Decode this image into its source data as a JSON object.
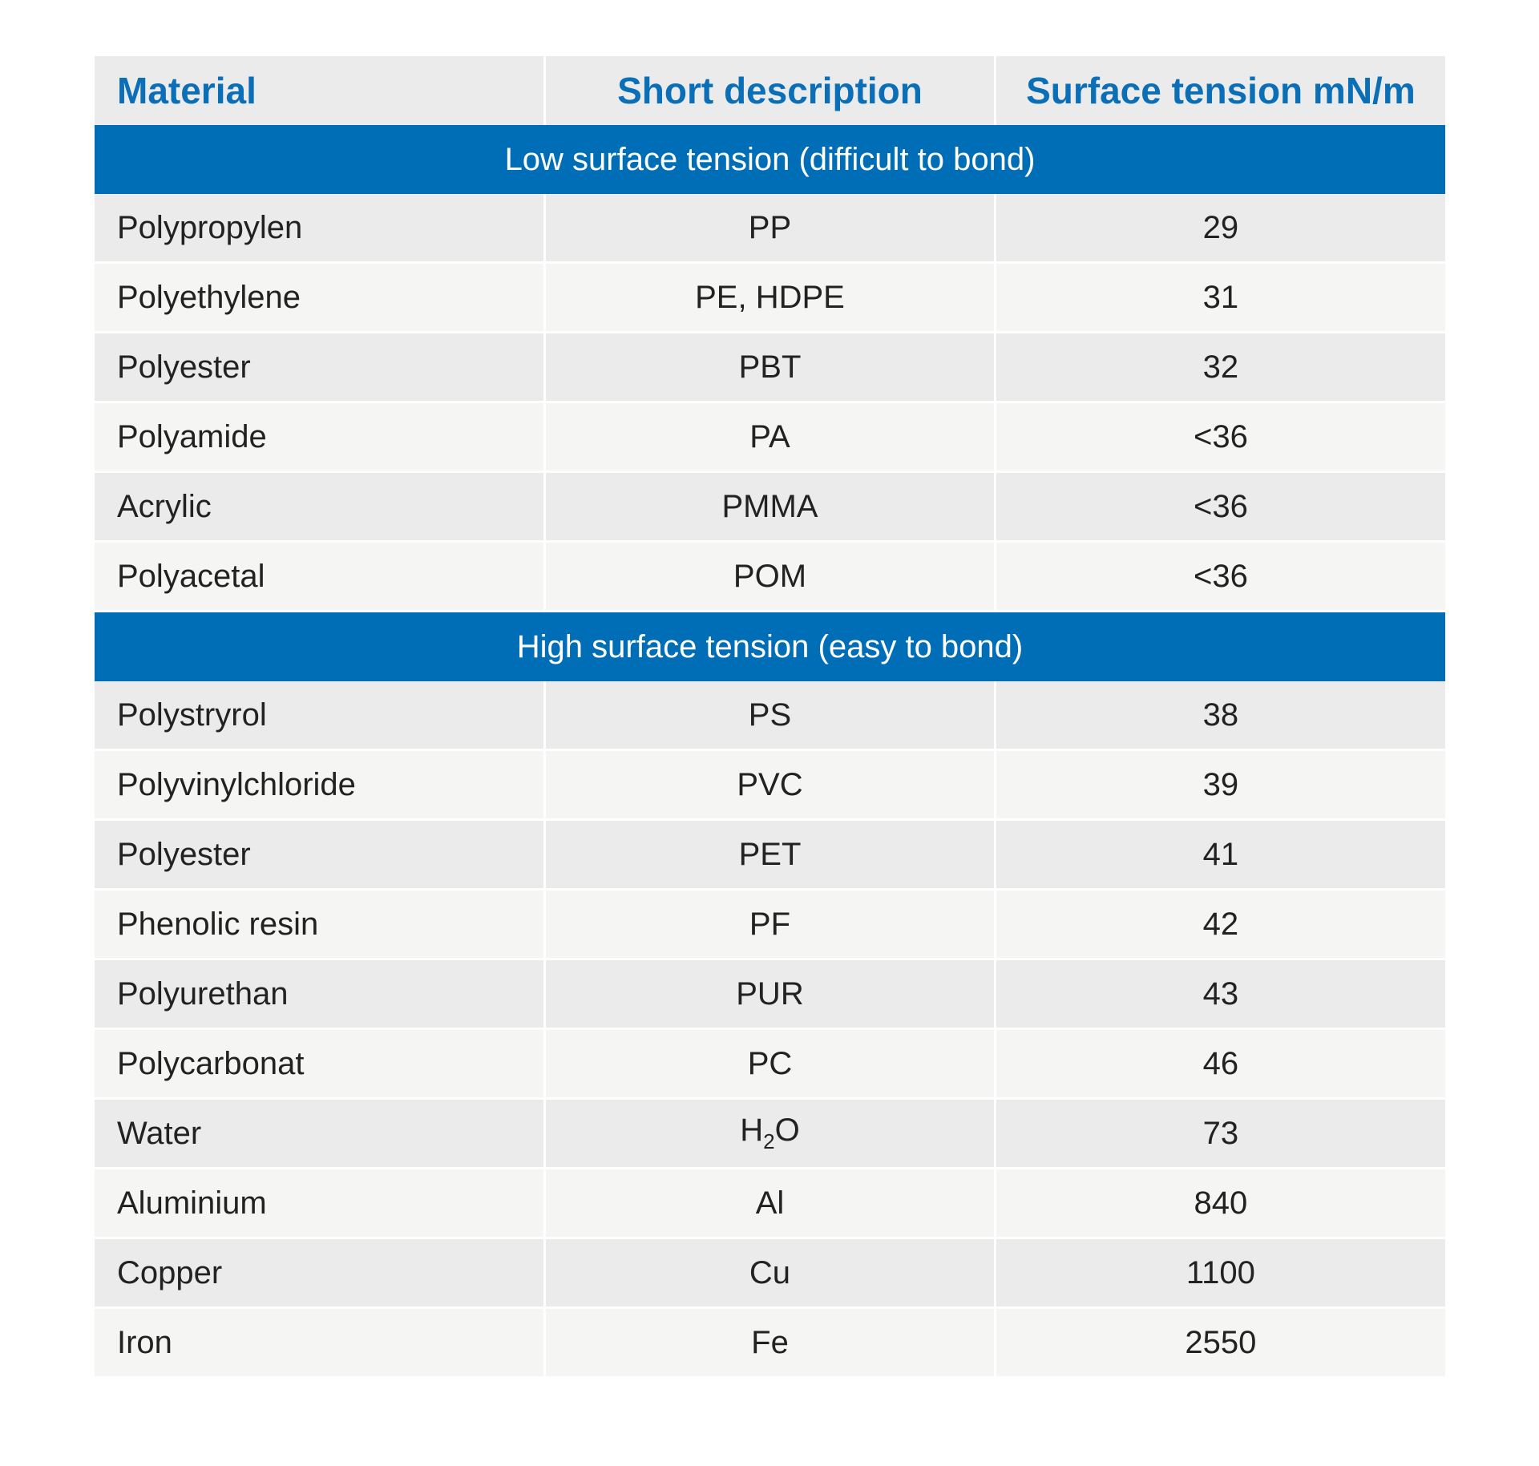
{
  "table": {
    "headers": [
      "Material",
      "Short description",
      "Surface tension mN/m"
    ],
    "sections": [
      {
        "title": "Low surface tension (difficult to bond)",
        "rows": [
          [
            "Polypropylen",
            "PP",
            29
          ],
          [
            "Polyethylene",
            "PE, HDPE",
            31
          ],
          [
            "Polyester",
            "PBT",
            32
          ],
          [
            "Polyamide",
            "PA",
            "<36"
          ],
          [
            "Acrylic",
            "PMMA",
            "<36"
          ],
          [
            "Polyacetal",
            "POM",
            "<36"
          ]
        ]
      },
      {
        "title": "High surface tension (easy to bond)",
        "rows": [
          [
            "Polystryrol",
            "PS",
            38
          ],
          [
            "Polyvinylchloride",
            "PVC",
            39
          ],
          [
            "Polyester",
            "PET",
            41
          ],
          [
            "Phenolic resin",
            "PF",
            42
          ],
          [
            "Polyurethan",
            "PUR",
            43
          ],
          [
            "Polycarbonat",
            "PC",
            46
          ],
          [
            "Water",
            {
              "base": "H",
              "sub": "2",
              "rest": "O"
            },
            73
          ],
          [
            "Aluminium",
            "Al",
            840
          ],
          [
            "Copper",
            "Cu",
            1100
          ],
          [
            "Iron",
            "Fe",
            2550
          ]
        ]
      }
    ]
  }
}
